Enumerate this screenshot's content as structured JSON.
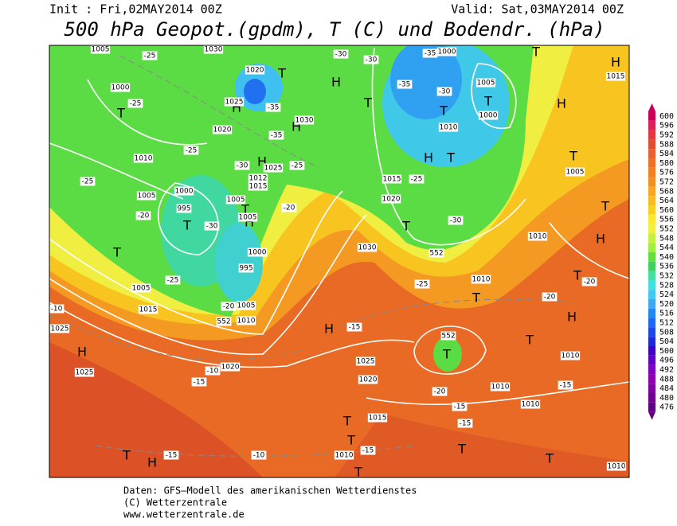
{
  "header": {
    "init": "Init : Fri,02MAY2014 00Z",
    "valid": "Valid: Sat,03MAY2014 00Z",
    "title": "500 hPa Geopot.(gpdm), T (C) und Bodendr. (hPa)"
  },
  "colorbar": {
    "labels": [
      600,
      596,
      592,
      588,
      584,
      580,
      576,
      572,
      568,
      564,
      560,
      556,
      552,
      548,
      544,
      540,
      536,
      532,
      528,
      524,
      520,
      516,
      512,
      508,
      504,
      500,
      496,
      492,
      488,
      484,
      480,
      476
    ],
    "colors": [
      "#c8005a",
      "#d8205a",
      "#e03a40",
      "#e04e30",
      "#e86030",
      "#f07028",
      "#f08020",
      "#f09020",
      "#f8a820",
      "#f8bc20",
      "#f8d020",
      "#f8e830",
      "#f0f040",
      "#c8f040",
      "#a0f040",
      "#60e040",
      "#40d060",
      "#40e0a0",
      "#40e0e0",
      "#40c8f0",
      "#40a8f0",
      "#2088f0",
      "#2068f0",
      "#2048e0",
      "#2028d0",
      "#4000c0",
      "#6000c0",
      "#8000c0",
      "#9000b0",
      "#8000a0",
      "#700090",
      "#600080"
    ]
  },
  "pressure_centers": [
    "H",
    "H",
    "H",
    "T",
    "T",
    "T",
    "T",
    "T",
    "H",
    "H",
    "T",
    "T",
    "T",
    "T",
    "H",
    "H",
    "T",
    "T",
    "T",
    "T",
    "H",
    "H",
    "H",
    "T",
    "T",
    "T",
    "T",
    "H",
    "T",
    "T",
    "T",
    "T",
    "H",
    "T",
    "H",
    "T"
  ],
  "isobar_labels": [
    "1005",
    "1000",
    "1010",
    "1005",
    "1000",
    "995",
    "1025",
    "1020",
    "1020",
    "1030",
    "1030",
    "1025",
    "1015",
    "1012",
    "1005",
    "1005",
    "1000",
    "995",
    "1005",
    "1010",
    "1015",
    "1005",
    "1025",
    "1025",
    "1020",
    "1025",
    "1020",
    "1015",
    "1010",
    "1010",
    "1010",
    "1010",
    "1010",
    "1010",
    "1015",
    "1020",
    "1010",
    "1000",
    "1005",
    "1000",
    "1030",
    "1005",
    "1015",
    "1010"
  ],
  "temperature_labels": [
    "-25",
    "-30",
    "-30",
    "-35",
    "-35",
    "-35",
    "-25",
    "-25",
    "-30",
    "-25",
    "-35",
    "-25",
    "-30",
    "-30",
    "-20",
    "-25",
    "-20",
    "-25",
    "-20",
    "-20",
    "-15",
    "-20",
    "-15",
    "-15",
    "-15",
    "-15",
    "-15",
    "-10",
    "-10",
    "-10",
    "-15",
    "-25",
    "-30",
    "-20"
  ],
  "height_labels": [
    "552",
    "552",
    "552"
  ],
  "footer": {
    "lines": [
      "Daten: GFS–Modell des amerikanischen Wetterdienstes",
      "(C) Wetterzentrale",
      "www.wetterzentrale.de"
    ]
  }
}
